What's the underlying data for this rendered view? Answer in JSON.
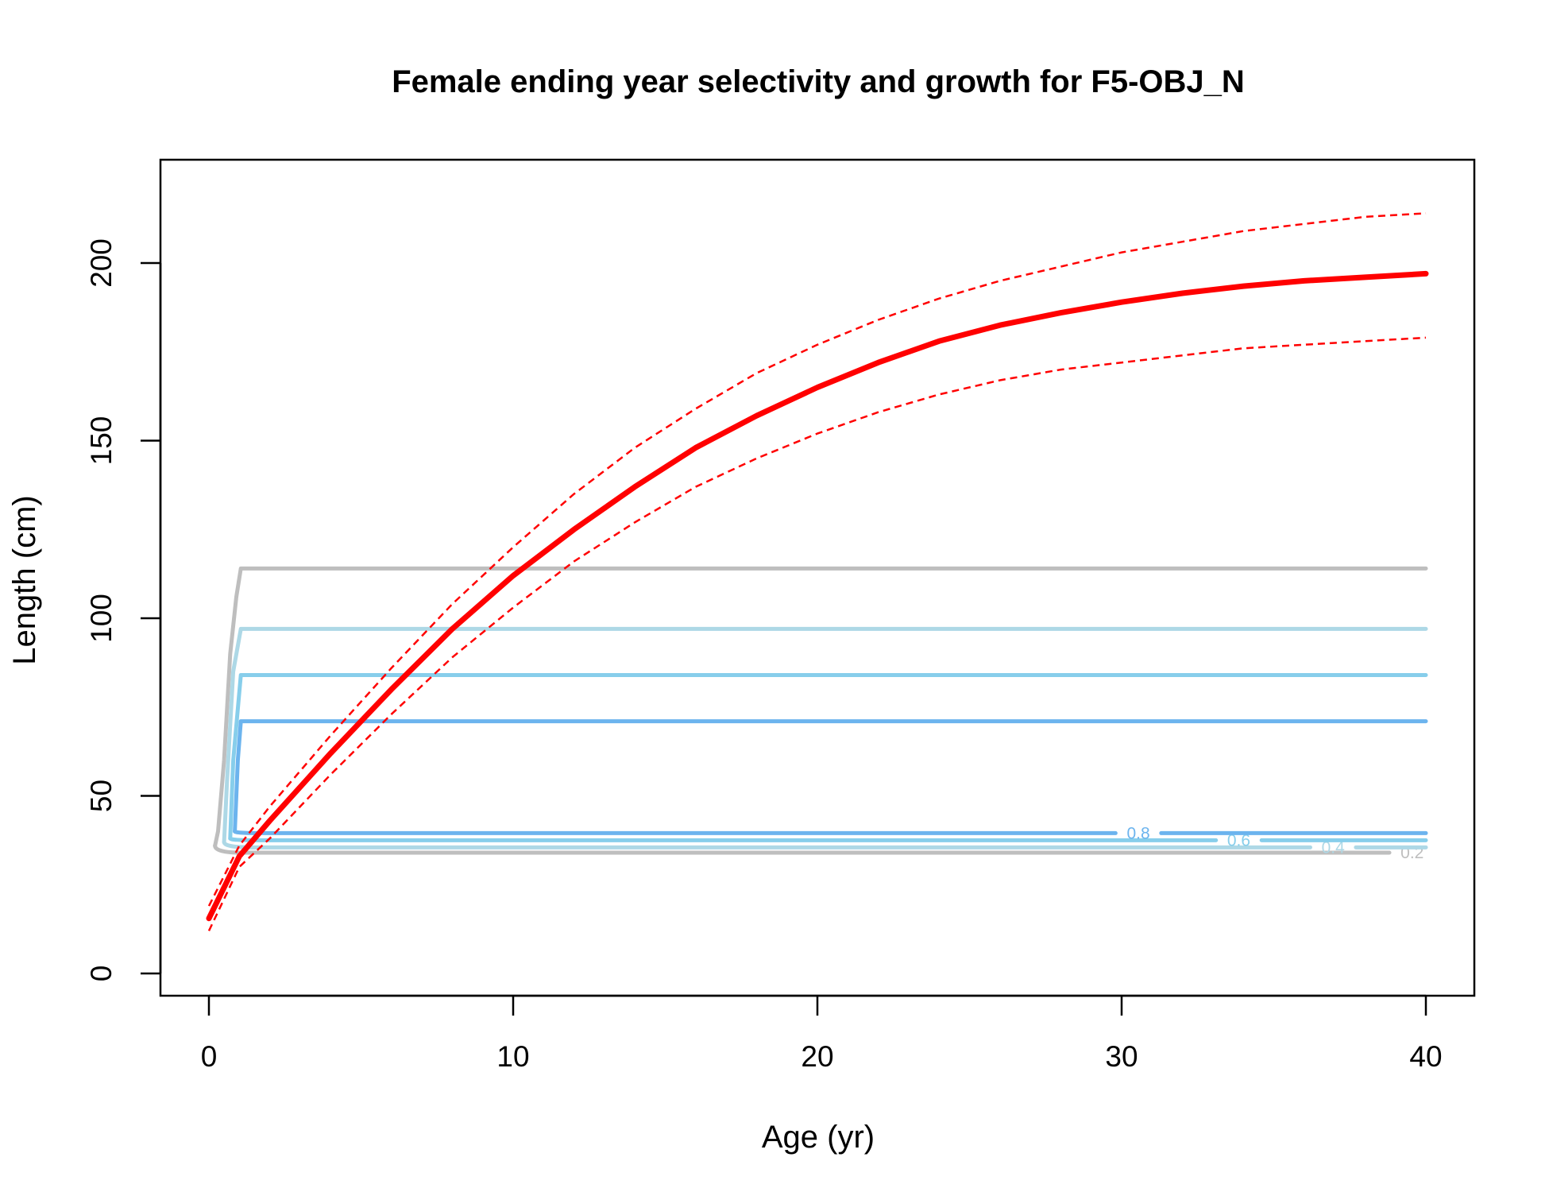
{
  "chart_data": {
    "type": "line",
    "title": "Female ending year selectivity and growth for F5-OBJ_N",
    "xlabel": "Age (yr)",
    "ylabel": "Length (cm)",
    "xlim": [
      0,
      40
    ],
    "ylim": [
      0,
      220
    ],
    "xticks": [
      0,
      10,
      20,
      30,
      40
    ],
    "yticks": [
      0,
      50,
      100,
      150,
      200
    ],
    "grid": false,
    "legend": "none",
    "growth": {
      "color": "#ff0000",
      "x": [
        0,
        1,
        2,
        4,
        6,
        8,
        10,
        12,
        14,
        16,
        18,
        20,
        22,
        24,
        26,
        28,
        30,
        32,
        34,
        36,
        38,
        40
      ],
      "mean": [
        15.5,
        33,
        43,
        62,
        80,
        97,
        112,
        125,
        137,
        148,
        157,
        165,
        172,
        178,
        182.5,
        186,
        189,
        191.5,
        193.5,
        195,
        196,
        197
      ],
      "upper": [
        19,
        36,
        47,
        67,
        86,
        104,
        120,
        135,
        148,
        159,
        169,
        177,
        184,
        190,
        195,
        199,
        203,
        206,
        209,
        211,
        213,
        214
      ],
      "lower": [
        12,
        30,
        38,
        56,
        73,
        89,
        103,
        116,
        127,
        137,
        145,
        152,
        158,
        163,
        167,
        170,
        172,
        174,
        176,
        177,
        178,
        179
      ]
    },
    "selectivity_contours": [
      {
        "level": "0.2",
        "color": "#bebebe",
        "ages": [
          0.2,
          0.3,
          0.5,
          0.7,
          0.9,
          1.05,
          40
        ],
        "lengths": [
          36,
          40,
          60,
          90,
          106,
          114,
          114
        ],
        "bottom": 34,
        "label_at": 39.4
      },
      {
        "level": "0.4",
        "color": "#add8e6",
        "ages": [
          0.5,
          0.6,
          0.8,
          1.05,
          40
        ],
        "lengths": [
          37,
          55,
          85,
          97,
          97
        ],
        "bottom": 35.5,
        "label_at": 36.8
      },
      {
        "level": "0.6",
        "color": "#87ceeb",
        "ages": [
          0.7,
          0.8,
          1.05,
          40
        ],
        "lengths": [
          38,
          60,
          84,
          84
        ],
        "bottom": 37.5,
        "label_at": 33.7
      },
      {
        "level": "0.8",
        "color": "#6cb4ee",
        "ages": [
          0.85,
          0.95,
          1.05,
          40
        ],
        "lengths": [
          40,
          60,
          71,
          71
        ],
        "bottom": 39.5,
        "label_at": 30.4
      }
    ]
  }
}
